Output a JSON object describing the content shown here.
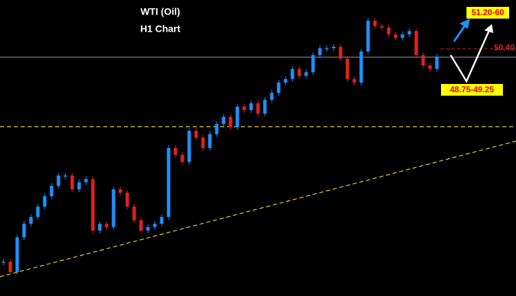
{
  "chart_data": {
    "type": "candlestick",
    "title": "WTI (Oil)",
    "subtitle": "H1 Chart",
    "annotations": [
      "51.20-60",
      "50.40",
      "48.75-49.25"
    ],
    "up_color": "#1e90ff",
    "down_color": "#e02020",
    "ylim": [
      42,
      52
    ],
    "values": [
      43.16,
      42.81,
      43.98,
      44.44,
      44.67,
      45.02,
      45.37,
      45.72,
      46.07,
      46.07,
      45.6,
      45.84,
      45.95,
      44.21,
      44.44,
      44.33,
      45.6,
      45.49,
      45.02,
      44.56,
      44.21,
      44.33,
      44.44,
      44.67,
      47.0,
      46.77,
      46.53,
      47.58,
      47.35,
      47.0,
      47.47,
      47.81,
      48.05,
      47.7,
      48.4,
      48.28,
      48.51,
      48.16,
      48.63,
      48.86,
      49.21,
      49.33,
      49.67,
      49.44,
      49.56,
      50.14,
      50.37,
      50.37,
      50.42,
      50.02,
      49.33,
      49.21,
      50.26,
      51.3,
      51.12,
      51.07,
      50.84,
      50.72,
      50.84,
      50.95,
      50.14,
      49.79,
      49.67,
      50.09
    ]
  }
}
